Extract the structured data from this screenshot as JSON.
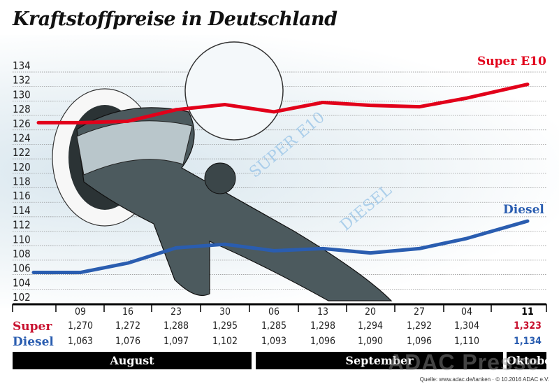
{
  "title": "Kraftstoffpreise in Deutschland",
  "illustration": {
    "super_text": "SUPER E10",
    "diesel_text": "DIESEL"
  },
  "watermark": "ADAC Presse",
  "source": "Quelle: www.adac.de/tanken · © 10.2016  ADAC e.V.",
  "colors": {
    "super": "#e2001a",
    "diesel": "#2a5db0",
    "super_label": "#c8102e"
  },
  "chart_data": {
    "type": "line",
    "title": "Kraftstoffpreise in Deutschland",
    "y_ticks": [
      102,
      104,
      106,
      108,
      110,
      112,
      114,
      116,
      118,
      120,
      122,
      124,
      126,
      128,
      130,
      132,
      134
    ],
    "ylim": [
      102,
      134
    ],
    "grid": true,
    "categories": [
      "09",
      "16",
      "23",
      "30",
      "06",
      "13",
      "20",
      "27",
      "04",
      "11"
    ],
    "months": [
      {
        "name": "August"
      },
      {
        "name": "September"
      },
      {
        "name": "Oktober"
      }
    ],
    "series": [
      {
        "name": "Super E10",
        "row_label": "Super",
        "values": [
          127.0,
          127.2,
          128.8,
          129.5,
          128.5,
          129.8,
          129.4,
          129.2,
          130.4,
          132.3
        ],
        "table": [
          "1,270",
          "1,272",
          "1,288",
          "1,295",
          "1,285",
          "1,298",
          "1,294",
          "1,292",
          "1,304",
          "1,323"
        ]
      },
      {
        "name": "Diesel",
        "row_label": "Diesel",
        "values": [
          106.3,
          107.6,
          109.7,
          110.2,
          109.3,
          109.6,
          109.0,
          109.6,
          111.0,
          113.4
        ],
        "table": [
          "1,063",
          "1,076",
          "1,097",
          "1,102",
          "1,093",
          "1,096",
          "1,090",
          "1,096",
          "1,110",
          "1,134"
        ]
      }
    ]
  }
}
